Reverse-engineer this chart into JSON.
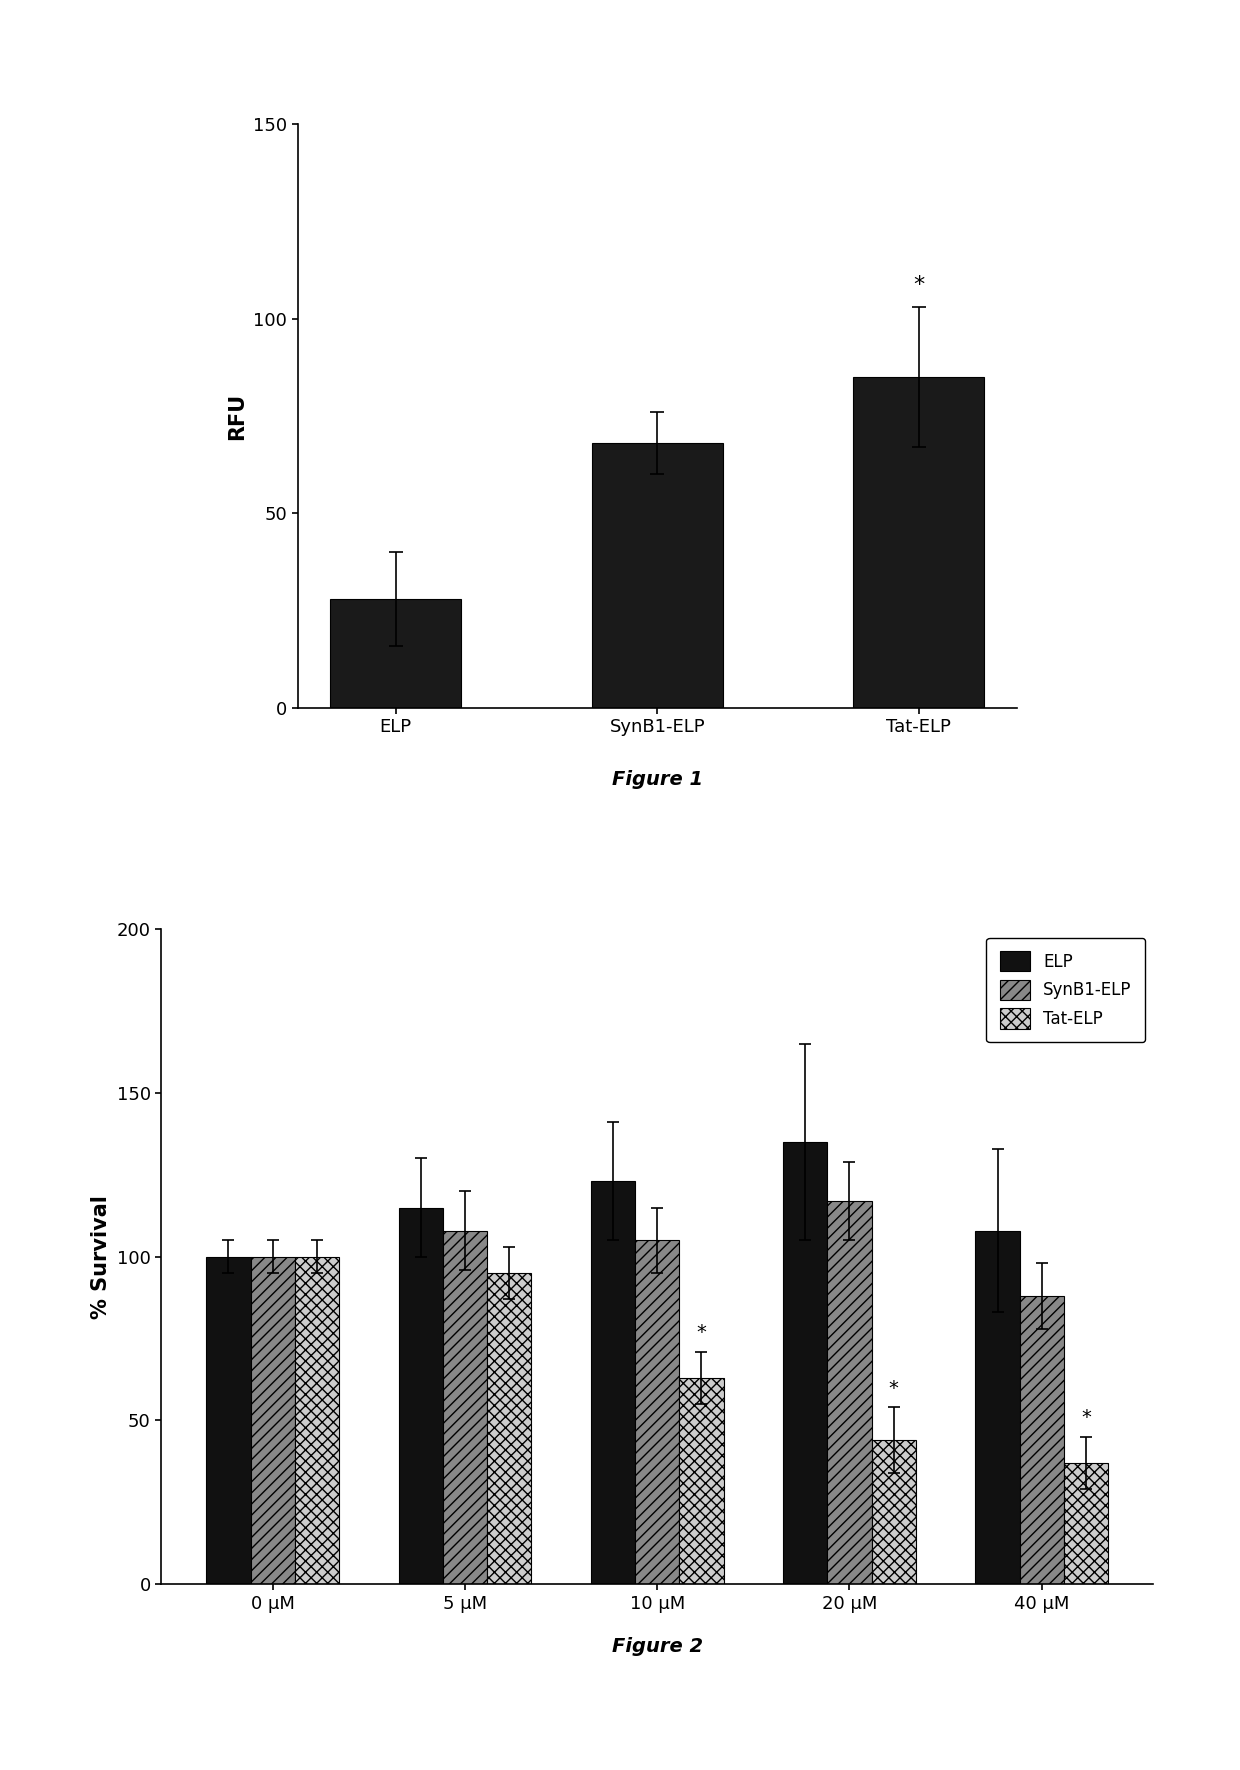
{
  "fig1": {
    "categories": [
      "ELP",
      "SynB1-ELP",
      "Tat-ELP"
    ],
    "values": [
      28,
      68,
      85
    ],
    "errors": [
      12,
      8,
      18
    ],
    "bar_color": "#1a1a1a",
    "ylabel": "RFU",
    "ylim": [
      0,
      150
    ],
    "yticks": [
      0,
      50,
      100,
      150
    ],
    "star_bar": 2,
    "caption": "Figure 1",
    "caption_fontsize": 14,
    "caption_fontweight": "bold"
  },
  "fig2": {
    "categories": [
      "0 μM",
      "5 μM",
      "10 μM",
      "20 μM",
      "40 μM"
    ],
    "series": {
      "ELP": {
        "values": [
          100,
          115,
          123,
          135,
          108
        ],
        "errors": [
          5,
          15,
          18,
          30,
          25
        ],
        "color": "#111111",
        "hatch": null
      },
      "SynB1-ELP": {
        "values": [
          100,
          108,
          105,
          117,
          88
        ],
        "errors": [
          5,
          12,
          10,
          12,
          10
        ],
        "color": "#888888",
        "hatch": "///"
      },
      "Tat-ELP": {
        "values": [
          100,
          95,
          63,
          44,
          37
        ],
        "errors": [
          5,
          8,
          8,
          10,
          8
        ],
        "color": "#cccccc",
        "hatch": "xxx"
      }
    },
    "ylabel": "% Survival",
    "ylim": [
      0,
      200
    ],
    "yticks": [
      0,
      50,
      100,
      150,
      200
    ],
    "caption": "Figure 2",
    "caption_fontsize": 14,
    "caption_fontweight": "bold"
  },
  "background_color": "#ffffff",
  "tick_fontsize": 13,
  "label_fontsize": 15,
  "legend_fontsize": 12
}
